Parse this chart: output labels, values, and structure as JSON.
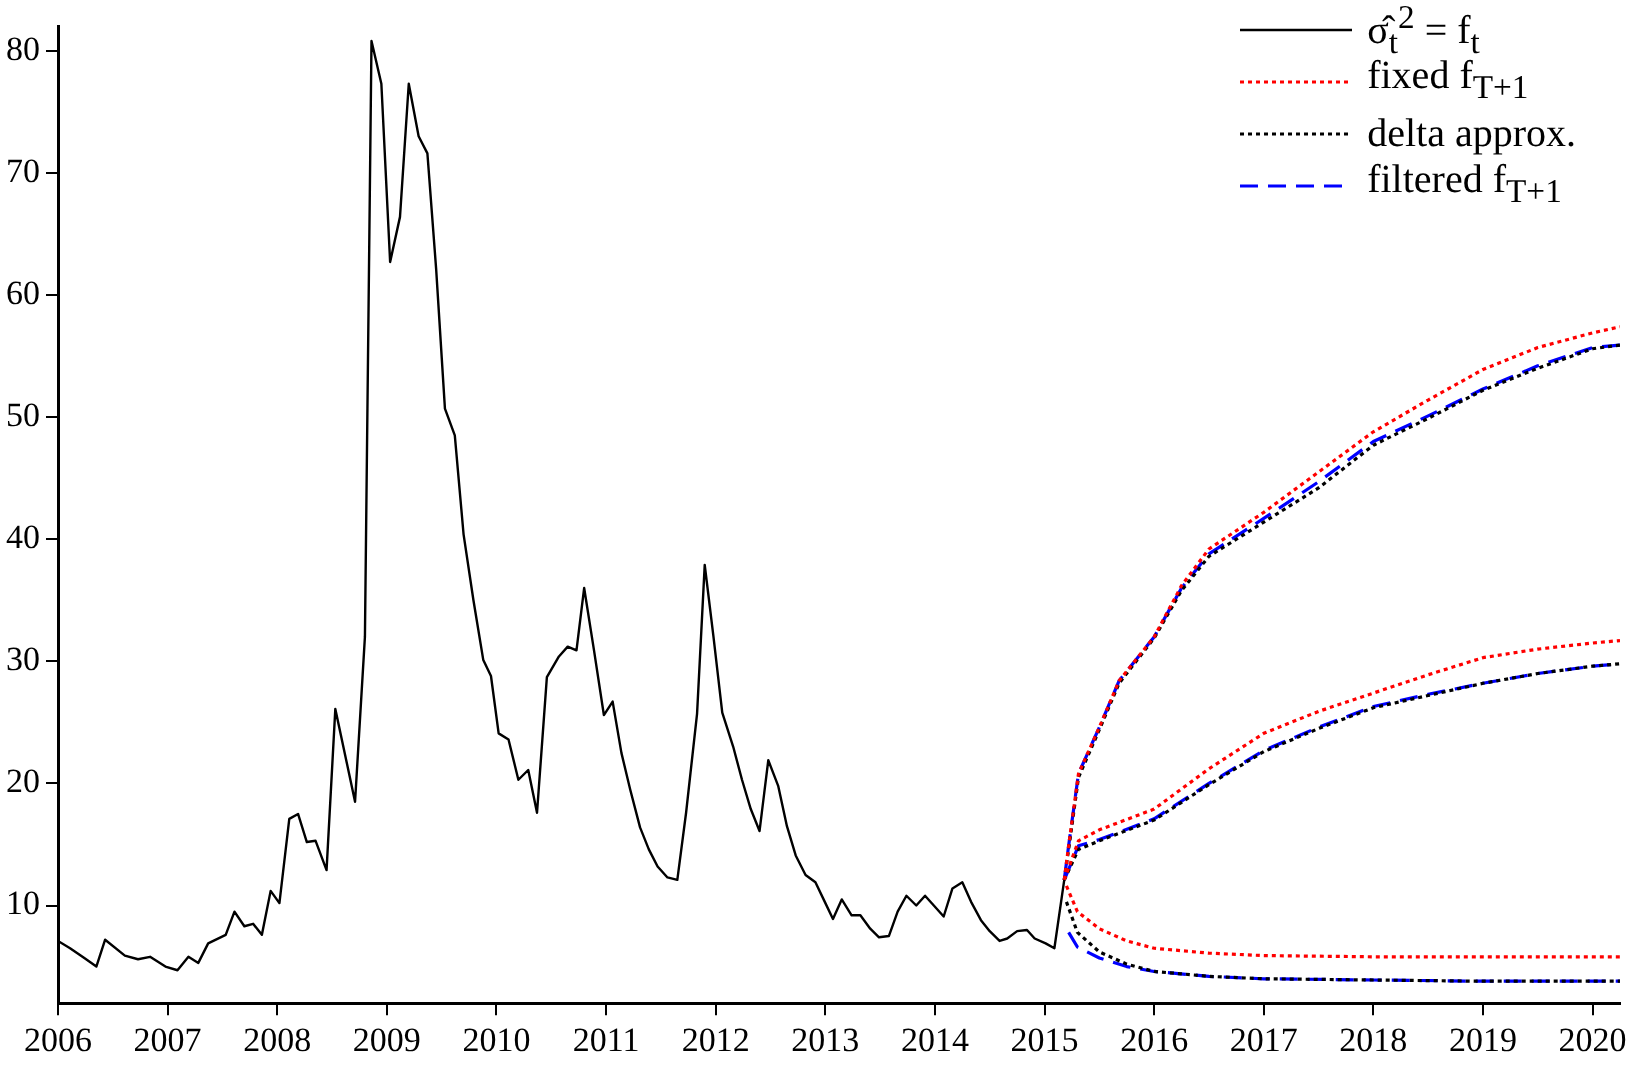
{
  "chart_data": {
    "type": "line",
    "xlim": [
      2006,
      2020.25
    ],
    "xticks": [
      2006,
      2007,
      2008,
      2009,
      2010,
      2011,
      2012,
      2013,
      2014,
      2015,
      2016,
      2017,
      2018,
      2019,
      2020
    ],
    "ylim": [
      2,
      82
    ],
    "yticks": [
      10,
      20,
      30,
      40,
      50,
      60,
      70,
      80
    ],
    "grid": false,
    "legend": "top right",
    "marker": "none",
    "series": [
      {
        "name": "σ̂$_{t}$$^{2}$ = f$_{t}$",
        "color": "#000000",
        "line_style": "solid",
        "x": [
          2006.0,
          2006.11,
          2006.24,
          2006.35,
          2006.43,
          2006.61,
          2006.73,
          2006.84,
          2006.98,
          2007.09,
          2007.19,
          2007.28,
          2007.37,
          2007.53,
          2007.61,
          2007.7,
          2007.78,
          2007.86,
          2007.94,
          2008.02,
          2008.11,
          2008.19,
          2008.27,
          2008.35,
          2008.45,
          2008.53,
          2008.71,
          2008.8,
          2008.86,
          2008.95,
          2009.03,
          2009.12,
          2009.2,
          2009.29,
          2009.37,
          2009.45,
          2009.53,
          2009.62,
          2009.7,
          2009.79,
          2009.88,
          2009.95,
          2010.02,
          2010.11,
          2010.2,
          2010.29,
          2010.37,
          2010.46,
          2010.57,
          2010.65,
          2010.73,
          2010.8,
          2010.89,
          2010.98,
          2011.06,
          2011.14,
          2011.22,
          2011.31,
          2011.39,
          2011.47,
          2011.56,
          2011.65,
          2011.73,
          2011.83,
          2011.9,
          2011.98,
          2012.06,
          2012.16,
          2012.24,
          2012.32,
          2012.4,
          2012.48,
          2012.57,
          2012.65,
          2012.73,
          2012.82,
          2012.91,
          2012.99,
          2013.07,
          2013.15,
          2013.24,
          2013.32,
          2013.41,
          2013.49,
          2013.58,
          2013.66,
          2013.74,
          2013.83,
          2013.91,
          2013.99,
          2014.08,
          2014.16,
          2014.25,
          2014.33,
          2014.42,
          2014.5,
          2014.59,
          2014.66,
          2014.75,
          2014.84,
          2014.91,
          2015.01,
          2015.09,
          2015.18
        ],
        "values": [
          7.1,
          6.5,
          5.7,
          5.0,
          7.2,
          5.9,
          5.6,
          5.8,
          5.0,
          4.7,
          5.8,
          5.3,
          6.9,
          7.6,
          9.5,
          8.3,
          8.5,
          7.6,
          11.2,
          10.2,
          17.1,
          17.5,
          15.2,
          15.3,
          12.9,
          26.1,
          18.5,
          32.0,
          80.8,
          77.3,
          62.7,
          66.4,
          77.3,
          73.0,
          71.6,
          62.1,
          50.7,
          48.5,
          40.4,
          35.0,
          30.1,
          28.8,
          24.1,
          23.6,
          20.3,
          21.1,
          17.6,
          28.7,
          30.4,
          31.2,
          30.9,
          36.0,
          30.9,
          25.6,
          26.7,
          22.5,
          19.5,
          16.4,
          14.6,
          13.2,
          12.3,
          12.1,
          17.6,
          25.7,
          37.9,
          32.0,
          25.8,
          23.0,
          20.3,
          17.9,
          16.1,
          21.9,
          19.8,
          16.5,
          14.1,
          12.5,
          11.9,
          10.4,
          8.9,
          10.5,
          9.2,
          9.2,
          8.1,
          7.4,
          7.5,
          9.5,
          10.8,
          10.0,
          10.8,
          10.0,
          9.1,
          11.4,
          11.9,
          10.3,
          8.8,
          7.9,
          7.1,
          7.3,
          7.9,
          8.0,
          7.3,
          6.9,
          6.5,
          12.1
        ]
      },
      {
        "name": "fixed f$_{T+1}$",
        "color": "#ff0000",
        "line_style": "dotted",
        "x": [
          2015.18,
          2015.22,
          2015.31,
          2015.5,
          2015.68,
          2016,
          2016.25,
          2016.5,
          2017,
          2017.5,
          2018,
          2018.5,
          2019,
          2019.5,
          2020,
          2020.25
        ],
        "values": [
          12.1,
          14.9,
          20.8,
          24.6,
          28.4,
          32.0,
          36.2,
          39.2,
          42.2,
          45.5,
          48.8,
          51.4,
          53.9,
          55.7,
          56.9,
          57.4
        ]
      },
      {
        "color": "#ff0000",
        "line_style": "dotted",
        "x": [
          2015.18,
          2015.31,
          2015.5,
          2016,
          2016.5,
          2017,
          2017.5,
          2018,
          2018.5,
          2019,
          2019.5,
          2020,
          2020.25
        ],
        "values": [
          12.1,
          15.3,
          16.2,
          17.9,
          21.2,
          24.1,
          25.9,
          27.4,
          28.9,
          30.3,
          31.0,
          31.5,
          31.7
        ]
      },
      {
        "color": "#ff0000",
        "line_style": "dotted",
        "x": [
          2015.2,
          2015.3,
          2015.5,
          2015.75,
          2016,
          2016.5,
          2017,
          2018,
          2019,
          2020,
          2020.25
        ],
        "values": [
          11.6,
          9.5,
          8.1,
          7.1,
          6.5,
          6.1,
          5.9,
          5.8,
          5.8,
          5.8,
          5.8
        ]
      },
      {
        "name": "delta approx.",
        "color": "#000000",
        "line_style": "dotted",
        "x": [
          2015.18,
          2015.22,
          2015.31,
          2015.5,
          2015.68,
          2016,
          2016.25,
          2016.5,
          2017,
          2017.5,
          2018,
          2018.5,
          2019,
          2019.5,
          2020,
          2020.25
        ],
        "values": [
          12.1,
          14.6,
          20.5,
          24.4,
          28.2,
          31.9,
          35.8,
          38.6,
          41.4,
          44.2,
          47.7,
          49.9,
          52.2,
          54.0,
          55.6,
          55.9
        ]
      },
      {
        "color": "#000000",
        "line_style": "dotted",
        "x": [
          2015.18,
          2015.31,
          2015.5,
          2016,
          2016.5,
          2017,
          2017.5,
          2018,
          2018.5,
          2019,
          2019.5,
          2020,
          2020.25
        ],
        "values": [
          12.1,
          14.6,
          15.3,
          17.0,
          19.9,
          22.6,
          24.5,
          26.2,
          27.2,
          28.2,
          29.0,
          29.6,
          29.8
        ]
      },
      {
        "color": "#000000",
        "line_style": "dotted",
        "x": [
          2015.2,
          2015.3,
          2015.5,
          2015.75,
          2016,
          2016.5,
          2017,
          2018,
          2019,
          2020,
          2020.25
        ],
        "values": [
          10.3,
          7.8,
          6.2,
          5.2,
          4.6,
          4.2,
          4.0,
          3.9,
          3.8,
          3.8,
          3.8
        ]
      },
      {
        "name": "filtered f$_{T+1}$",
        "color": "#0000ff",
        "line_style": "dashed",
        "x": [
          2015.18,
          2015.22,
          2015.31,
          2015.5,
          2015.68,
          2016,
          2016.25,
          2016.5,
          2017,
          2017.5,
          2018,
          2018.5,
          2019,
          2019.5,
          2020,
          2020.25
        ],
        "values": [
          12.1,
          14.9,
          20.8,
          24.6,
          28.4,
          32.0,
          36.0,
          38.8,
          41.7,
          44.7,
          48.0,
          50.1,
          52.3,
          54.2,
          55.7,
          55.9
        ]
      },
      {
        "color": "#0000ff",
        "line_style": "dashed",
        "x": [
          2015.18,
          2015.31,
          2015.5,
          2016,
          2016.5,
          2017,
          2017.5,
          2018,
          2018.5,
          2019,
          2019.5,
          2020,
          2020.25
        ],
        "values": [
          12.1,
          14.9,
          15.4,
          17.1,
          20.0,
          22.7,
          24.6,
          26.3,
          27.3,
          28.2,
          29.0,
          29.6,
          29.8
        ]
      },
      {
        "color": "#0000ff",
        "line_style": "dashed",
        "x": [
          2015.22,
          2015.3,
          2015.5,
          2015.75,
          2016,
          2016.5,
          2017,
          2018,
          2019,
          2020,
          2020.25
        ],
        "values": [
          7.8,
          6.6,
          5.7,
          5.0,
          4.6,
          4.2,
          4.0,
          3.9,
          3.8,
          3.8,
          3.8
        ]
      }
    ]
  }
}
